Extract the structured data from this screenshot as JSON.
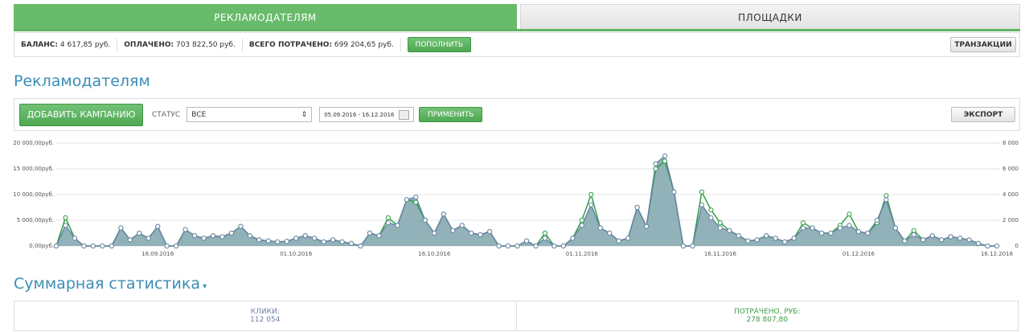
{
  "tabs": [
    "РЕКЛАМОДАТЕЛЯМ",
    "ПЛОЩАДКИ"
  ],
  "balance": {
    "items": [
      {
        "label": "БАЛАНС:",
        "value": "4 617,85 руб."
      },
      {
        "label": "ОПЛАЧЕНО:",
        "value": "703 822,50 руб."
      },
      {
        "label": "ВСЕГО ПОТРАЧЕНО:",
        "value": "699 204,65 руб."
      }
    ],
    "topup": "ПОПОЛНИТЬ",
    "transactions": "ТРАНЗАКЦИИ"
  },
  "heading": "Рекламодателям",
  "toolbar": {
    "add": "ДОБАВИТЬ КАМПАНИЮ",
    "status_label": "СТАТУС",
    "status": "ВСЕ",
    "dates": "05.09.2016 - 16.12.2016",
    "apply": "ПРИМЕНИТЬ",
    "export": "ЭКСПОРТ"
  },
  "chart_data": {
    "type": "area",
    "grid": true,
    "area_color": "#7fa5ad",
    "categories": [
      null,
      null,
      null,
      null,
      null,
      null,
      null,
      null,
      null,
      null,
      null,
      "16.09.2016",
      null,
      null,
      null,
      null,
      null,
      null,
      null,
      null,
      null,
      null,
      null,
      null,
      null,
      null,
      "01.10.2016",
      null,
      null,
      null,
      null,
      null,
      null,
      null,
      null,
      null,
      null,
      null,
      null,
      null,
      null,
      "16.10.2016",
      null,
      null,
      null,
      null,
      null,
      null,
      null,
      null,
      null,
      null,
      null,
      null,
      null,
      null,
      null,
      "01.11.2016",
      null,
      null,
      null,
      null,
      null,
      null,
      null,
      null,
      null,
      null,
      null,
      null,
      null,
      null,
      "16.11.2016",
      null,
      null,
      null,
      null,
      null,
      null,
      null,
      null,
      null,
      null,
      null,
      null,
      null,
      null,
      "01.12.2016",
      null,
      null,
      null,
      null,
      null,
      null,
      null,
      null,
      null,
      null,
      null,
      null,
      null,
      null,
      "16.12.2016"
    ],
    "series": [
      {
        "color": "#2e9e45",
        "values": [
          0,
          5500,
          1500,
          0,
          0,
          0,
          0,
          3500,
          1200,
          2500,
          1500,
          3800,
          0,
          0,
          3200,
          2000,
          1500,
          2000,
          1800,
          2500,
          3800,
          2000,
          1200,
          1000,
          800,
          900,
          1500,
          2000,
          1500,
          800,
          1200,
          800,
          500,
          0,
          2500,
          2000,
          5500,
          4000,
          9000,
          8500,
          5000,
          2500,
          6200,
          3000,
          4000,
          2500,
          2200,
          2800,
          0,
          0,
          0,
          1000,
          0,
          2500,
          0,
          0,
          1500,
          5000,
          10000,
          3500,
          2500,
          1000,
          1500,
          7500,
          3800,
          15000,
          16500,
          10500,
          0,
          0,
          10500,
          7000,
          4500,
          3000,
          2000,
          1000,
          1200,
          2000,
          1500,
          800,
          1500,
          4500,
          3500,
          2500,
          2500,
          4000,
          6200,
          2800,
          2500,
          4500,
          9800,
          3500,
          1000,
          3000,
          1200,
          2000,
          1200,
          1800,
          1500,
          1200,
          500,
          0,
          0
        ]
      },
      {
        "color": "#6c84a8",
        "axis": "y2",
        "values": [
          0,
          1600,
          600,
          0,
          0,
          0,
          0,
          1400,
          480,
          1000,
          600,
          1520,
          0,
          0,
          1280,
          800,
          600,
          800,
          720,
          1000,
          1520,
          800,
          480,
          400,
          320,
          360,
          600,
          800,
          600,
          320,
          480,
          320,
          200,
          0,
          1000,
          800,
          1800,
          1600,
          3600,
          3800,
          2000,
          1000,
          2480,
          1200,
          1600,
          1000,
          880,
          1120,
          0,
          0,
          0,
          400,
          0,
          600,
          0,
          0,
          600,
          1600,
          3200,
          1400,
          1000,
          400,
          600,
          3000,
          1520,
          6400,
          7000,
          4200,
          0,
          0,
          3200,
          2200,
          1400,
          1200,
          800,
          400,
          480,
          800,
          600,
          320,
          600,
          1400,
          1400,
          1000,
          1000,
          1400,
          1600,
          1120,
          1000,
          2000,
          3600,
          1400,
          400,
          880,
          480,
          800,
          480,
          720,
          600,
          480,
          200,
          0,
          0
        ]
      }
    ],
    "ylim": [
      0,
      20000
    ],
    "yticks": [
      {
        "value": 0,
        "label": "0,00руб."
      },
      {
        "value": 5000,
        "label": "5 000,00руб."
      },
      {
        "value": 10000,
        "label": "10 000,00руб."
      },
      {
        "value": 15000,
        "label": "15 000,00руб."
      },
      {
        "value": 20000,
        "label": "20 000,00руб."
      }
    ],
    "y2lim": [
      0,
      8000
    ],
    "y2ticks": [
      0,
      {
        "value": 2000,
        "label": "2 000"
      },
      {
        "value": 4000,
        "label": "4 000"
      },
      {
        "value": 6000,
        "label": "6 000"
      },
      {
        "value": 8000,
        "label": "8 000"
      }
    ]
  },
  "summary": {
    "title": "Суммарная статистика",
    "stats": [
      {
        "label": "КЛИКИ:",
        "value": "112 054"
      },
      {
        "label": "ПОТРАЧЕНО, РУБ:",
        "value": "278 807,80"
      }
    ]
  }
}
